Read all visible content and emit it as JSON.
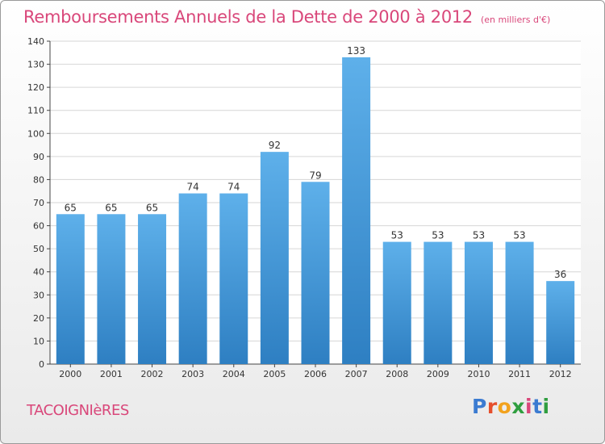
{
  "title": "Remboursements Annuels de la Dette de 2000 à 2012",
  "unit_note": "(en milliers d'€)",
  "commune": "TACOIGNIèRES",
  "brand": {
    "letters": [
      "P",
      "r",
      "o",
      "x",
      "i",
      "t",
      "i"
    ],
    "colors": [
      "#3b7bd1",
      "#e64f2c",
      "#f2a21d",
      "#2f9e3f",
      "#d9477a",
      "#3b7bd1",
      "#2f9e3f"
    ]
  },
  "colors": {
    "title": "#d9477a",
    "bar_light": "#5eb0ea",
    "bar_dark": "#2e7fc2"
  },
  "chart_data": {
    "type": "bar",
    "categories": [
      "2000",
      "2001",
      "2002",
      "2003",
      "2004",
      "2005",
      "2006",
      "2007",
      "2008",
      "2009",
      "2010",
      "2011",
      "2012"
    ],
    "values": [
      65,
      65,
      65,
      74,
      74,
      92,
      79,
      133,
      53,
      53,
      53,
      53,
      36
    ],
    "title": "Remboursements Annuels de la Dette de 2000 à 2012",
    "xlabel": "",
    "ylabel": "",
    "ylim": [
      0,
      140
    ],
    "yticks": [
      0,
      10,
      20,
      30,
      40,
      50,
      60,
      70,
      80,
      90,
      100,
      110,
      120,
      130,
      140
    ],
    "grid": true,
    "data_labels": true
  }
}
